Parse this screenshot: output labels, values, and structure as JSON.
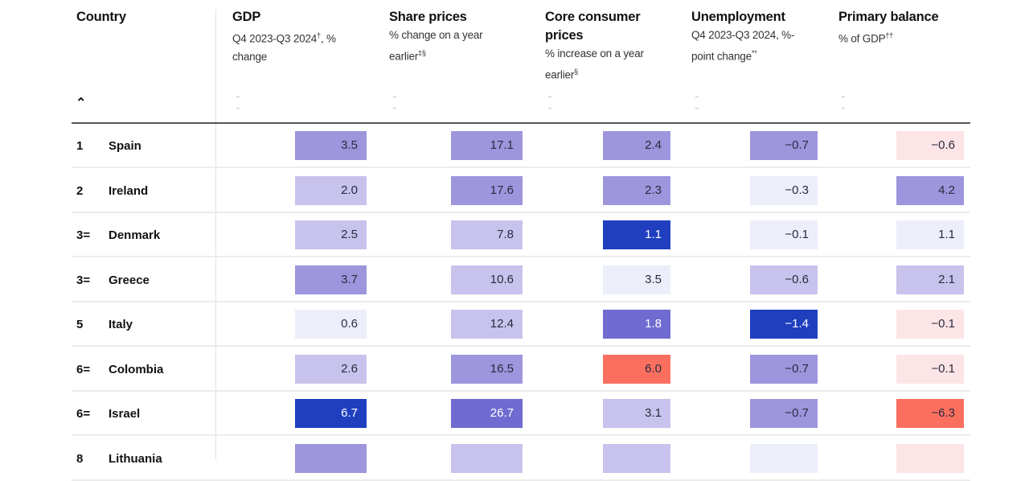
{
  "columns": [
    {
      "key": "country",
      "title": "Country",
      "subtitle": "",
      "sup": "",
      "sort": "ascending"
    },
    {
      "key": "gdp",
      "title": "GDP",
      "subtitle": "Q4 2023-Q3 2024",
      "sup": "†",
      "subtitle_after": ", % change",
      "sort": "none"
    },
    {
      "key": "share",
      "title": "Share prices",
      "subtitle": "% change on a year earlier",
      "sup": "‡§",
      "subtitle_after": "",
      "sort": "none"
    },
    {
      "key": "core",
      "title": "Core consumer prices",
      "subtitle": "% increase on a year earlier",
      "sup": "§",
      "subtitle_after": "",
      "sort": "none"
    },
    {
      "key": "unemp",
      "title": "Unemployment",
      "subtitle": "Q4 2023-Q3 2024, %-point change",
      "sup": "**",
      "subtitle_after": "",
      "sort": "none"
    },
    {
      "key": "primary",
      "title": "Primary balance",
      "subtitle": "% of GDP",
      "sup": "††",
      "subtitle_after": "",
      "sort": "none"
    }
  ],
  "icons": {
    "sort_asc": "chevron-up-icon",
    "sort_none": "sort-updown-icon"
  },
  "palette": {
    "l1": "#eceefa",
    "l2": "#c8c3ec",
    "l3": "#9d96dd",
    "l4": "#6f6bd0",
    "l5": "#1f3fbf",
    "n1": "#fde4e6",
    "n2": "#fb6f5f"
  },
  "rows": [
    {
      "rank": "1",
      "country": "Spain",
      "cells": [
        {
          "v": "3.5",
          "tone": "l3"
        },
        {
          "v": "17.1",
          "tone": "l3"
        },
        {
          "v": "2.4",
          "tone": "l3"
        },
        {
          "v": "−0.7",
          "tone": "l3"
        },
        {
          "v": "−0.6",
          "tone": "n1"
        }
      ]
    },
    {
      "rank": "2",
      "country": "Ireland",
      "cells": [
        {
          "v": "2.0",
          "tone": "l2"
        },
        {
          "v": "17.6",
          "tone": "l3"
        },
        {
          "v": "2.3",
          "tone": "l3"
        },
        {
          "v": "−0.3",
          "tone": "l1"
        },
        {
          "v": "4.2",
          "tone": "l3"
        }
      ]
    },
    {
      "rank": "3=",
      "country": "Denmark",
      "cells": [
        {
          "v": "2.5",
          "tone": "l2"
        },
        {
          "v": "7.8",
          "tone": "l2"
        },
        {
          "v": "1.1",
          "tone": "l5"
        },
        {
          "v": "−0.1",
          "tone": "l1"
        },
        {
          "v": "1.1",
          "tone": "l1"
        }
      ]
    },
    {
      "rank": "3=",
      "country": "Greece",
      "cells": [
        {
          "v": "3.7",
          "tone": "l3"
        },
        {
          "v": "10.6",
          "tone": "l2"
        },
        {
          "v": "3.5",
          "tone": "l1"
        },
        {
          "v": "−0.6",
          "tone": "l2"
        },
        {
          "v": "2.1",
          "tone": "l2"
        }
      ]
    },
    {
      "rank": "5",
      "country": "Italy",
      "cells": [
        {
          "v": "0.6",
          "tone": "l1"
        },
        {
          "v": "12.4",
          "tone": "l2"
        },
        {
          "v": "1.8",
          "tone": "l4"
        },
        {
          "v": "−1.4",
          "tone": "l5"
        },
        {
          "v": "−0.1",
          "tone": "n1"
        }
      ]
    },
    {
      "rank": "6=",
      "country": "Colombia",
      "cells": [
        {
          "v": "2.6",
          "tone": "l2"
        },
        {
          "v": "16.5",
          "tone": "l3"
        },
        {
          "v": "6.0",
          "tone": "n2"
        },
        {
          "v": "−0.7",
          "tone": "l3"
        },
        {
          "v": "−0.1",
          "tone": "n1"
        }
      ]
    },
    {
      "rank": "6=",
      "country": "Israel",
      "cells": [
        {
          "v": "6.7",
          "tone": "l5"
        },
        {
          "v": "26.7",
          "tone": "l4"
        },
        {
          "v": "3.1",
          "tone": "l2"
        },
        {
          "v": "−0.7",
          "tone": "l3"
        },
        {
          "v": "−6.3",
          "tone": "n2"
        }
      ]
    },
    {
      "rank": "8",
      "country": "Lithuania",
      "cells": [
        {
          "v": "",
          "tone": "l3"
        },
        {
          "v": "",
          "tone": "l2"
        },
        {
          "v": "",
          "tone": "l2"
        },
        {
          "v": "",
          "tone": "l1"
        },
        {
          "v": "",
          "tone": "n1"
        }
      ]
    }
  ]
}
